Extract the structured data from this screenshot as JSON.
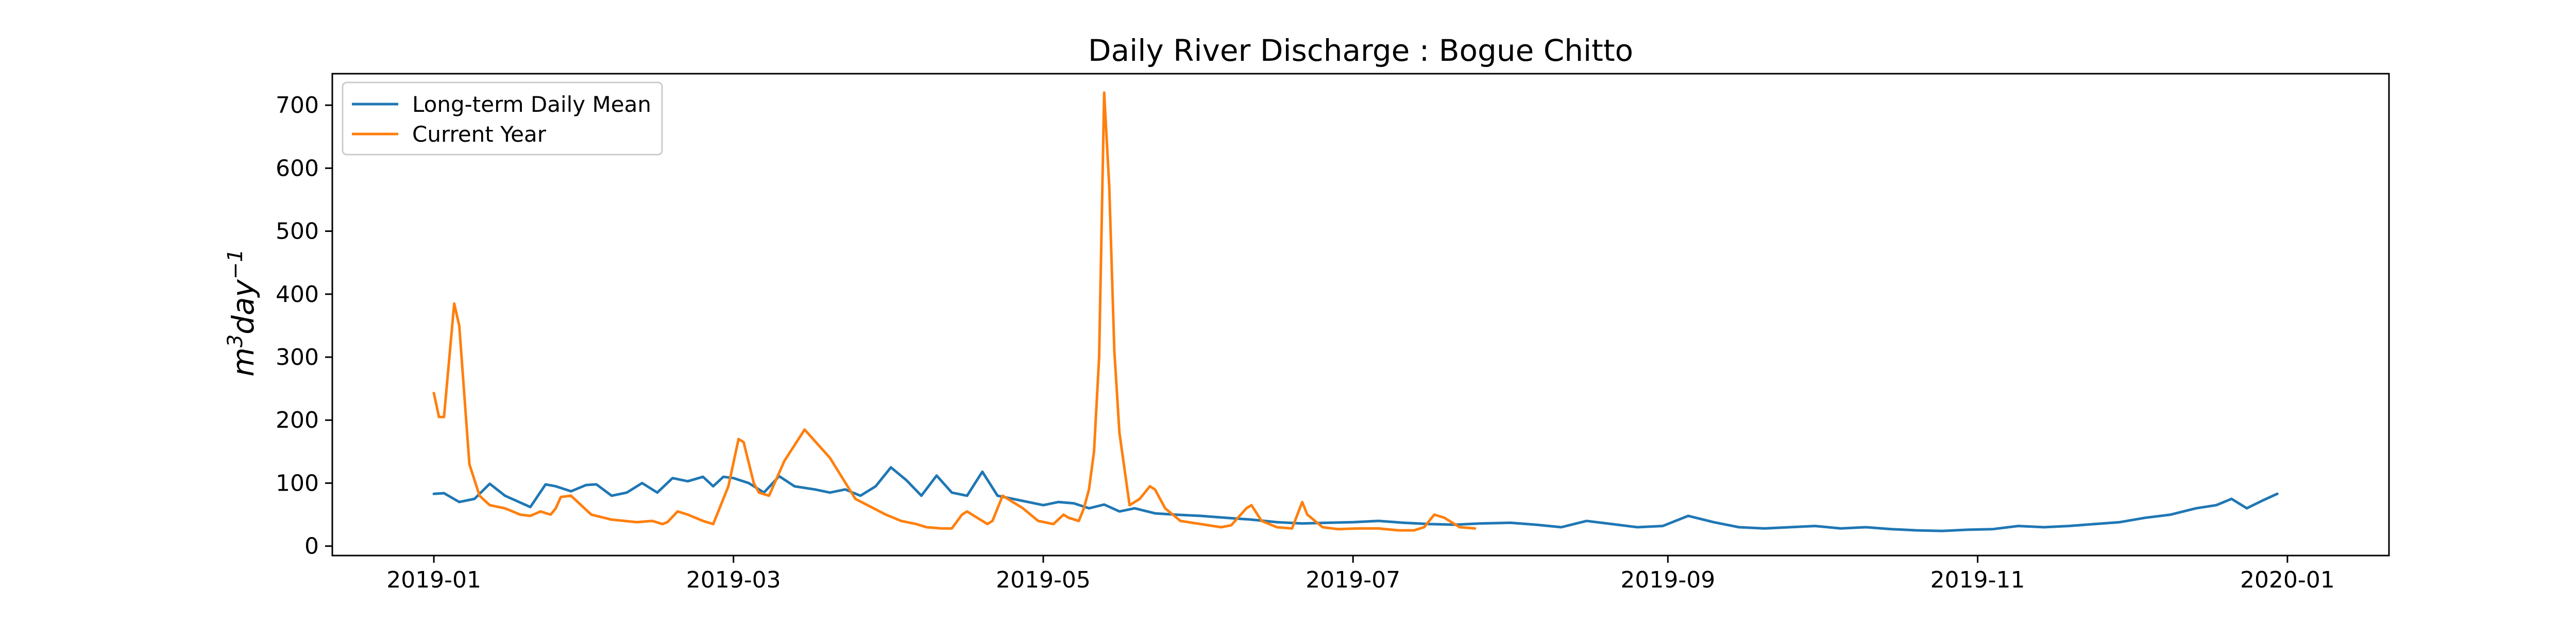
{
  "chart_data": {
    "type": "line",
    "title": "Daily River Discharge : Bogue Chitto",
    "ylabel": "m³day⁻¹",
    "ylabel_parts": {
      "base": "m",
      "sup1": "3",
      "mid": "day",
      "sup2": "−1"
    },
    "xlabel": "",
    "x_type": "date",
    "xlim": [
      "2018-12-12",
      "2020-01-21"
    ],
    "ylim": [
      -15,
      750
    ],
    "x_ticks": [
      "2019-01-01",
      "2019-03-01",
      "2019-05-01",
      "2019-07-01",
      "2019-09-01",
      "2019-11-01",
      "2020-01-01"
    ],
    "x_tick_labels": [
      "2019-01",
      "2019-03",
      "2019-05",
      "2019-07",
      "2019-09",
      "2019-11",
      "2020-01"
    ],
    "y_ticks": [
      0,
      100,
      200,
      300,
      400,
      500,
      600,
      700
    ],
    "y_tick_labels": [
      "0",
      "100",
      "200",
      "300",
      "400",
      "500",
      "600",
      "700"
    ],
    "grid": false,
    "legend_position": "top-left",
    "series": [
      {
        "name": "Long-term Daily Mean",
        "color": "#1f77b4",
        "x": [
          "2019-01-01",
          "2019-01-03",
          "2019-01-06",
          "2019-01-09",
          "2019-01-12",
          "2019-01-15",
          "2019-01-20",
          "2019-01-23",
          "2019-01-25",
          "2019-01-28",
          "2019-01-31",
          "2019-02-02",
          "2019-02-05",
          "2019-02-08",
          "2019-02-11",
          "2019-02-14",
          "2019-02-17",
          "2019-02-20",
          "2019-02-23",
          "2019-02-25",
          "2019-02-27",
          "2019-03-01",
          "2019-03-04",
          "2019-03-07",
          "2019-03-10",
          "2019-03-13",
          "2019-03-17",
          "2019-03-20",
          "2019-03-23",
          "2019-03-26",
          "2019-03-29",
          "2019-04-01",
          "2019-04-04",
          "2019-04-07",
          "2019-04-10",
          "2019-04-13",
          "2019-04-16",
          "2019-04-19",
          "2019-04-22",
          "2019-04-25",
          "2019-04-28",
          "2019-05-01",
          "2019-05-04",
          "2019-05-07",
          "2019-05-10",
          "2019-05-13",
          "2019-05-16",
          "2019-05-19",
          "2019-05-23",
          "2019-05-27",
          "2019-06-01",
          "2019-06-06",
          "2019-06-11",
          "2019-06-16",
          "2019-06-21",
          "2019-06-26",
          "2019-07-01",
          "2019-07-06",
          "2019-07-11",
          "2019-07-16",
          "2019-07-21",
          "2019-07-26",
          "2019-08-01",
          "2019-08-06",
          "2019-08-11",
          "2019-08-16",
          "2019-08-21",
          "2019-08-26",
          "2019-08-31",
          "2019-09-05",
          "2019-09-10",
          "2019-09-15",
          "2019-09-20",
          "2019-09-25",
          "2019-09-30",
          "2019-10-05",
          "2019-10-10",
          "2019-10-15",
          "2019-10-20",
          "2019-10-25",
          "2019-10-30",
          "2019-11-04",
          "2019-11-09",
          "2019-11-14",
          "2019-11-19",
          "2019-11-24",
          "2019-11-29",
          "2019-12-04",
          "2019-12-09",
          "2019-12-14",
          "2019-12-18",
          "2019-12-21",
          "2019-12-24",
          "2019-12-27",
          "2019-12-30"
        ],
        "y": [
          83,
          84,
          70,
          75,
          99,
          80,
          62,
          98,
          95,
          87,
          97,
          98,
          80,
          85,
          100,
          85,
          108,
          103,
          110,
          95,
          110,
          108,
          100,
          85,
          111,
          95,
          90,
          85,
          90,
          80,
          95,
          125,
          105,
          80,
          112,
          85,
          80,
          118,
          80,
          75,
          70,
          65,
          70,
          68,
          60,
          66,
          55,
          60,
          52,
          50,
          48,
          45,
          42,
          38,
          36,
          37,
          38,
          40,
          37,
          35,
          34,
          36,
          37,
          34,
          30,
          40,
          35,
          30,
          32,
          48,
          38,
          30,
          28,
          30,
          32,
          28,
          30,
          27,
          25,
          24,
          26,
          27,
          32,
          30,
          32,
          35,
          38,
          45,
          50,
          60,
          65,
          75,
          60,
          72,
          83
        ]
      },
      {
        "name": "Current Year",
        "color": "#ff7f0e",
        "x": [
          "2019-01-01",
          "2019-01-02",
          "2019-01-03",
          "2019-01-05",
          "2019-01-06",
          "2019-01-08",
          "2019-01-10",
          "2019-01-12",
          "2019-01-15",
          "2019-01-18",
          "2019-01-20",
          "2019-01-22",
          "2019-01-24",
          "2019-01-25",
          "2019-01-26",
          "2019-01-28",
          "2019-02-01",
          "2019-02-05",
          "2019-02-10",
          "2019-02-13",
          "2019-02-15",
          "2019-02-16",
          "2019-02-18",
          "2019-02-20",
          "2019-02-23",
          "2019-02-25",
          "2019-02-27",
          "2019-02-28",
          "2019-03-02",
          "2019-03-03",
          "2019-03-05",
          "2019-03-06",
          "2019-03-08",
          "2019-03-11",
          "2019-03-15",
          "2019-03-20",
          "2019-03-25",
          "2019-03-31",
          "2019-04-03",
          "2019-04-06",
          "2019-04-08",
          "2019-04-11",
          "2019-04-13",
          "2019-04-15",
          "2019-04-16",
          "2019-04-18",
          "2019-04-19",
          "2019-04-20",
          "2019-04-21",
          "2019-04-22",
          "2019-04-23",
          "2019-04-24",
          "2019-04-25",
          "2019-04-27",
          "2019-04-30",
          "2019-05-03",
          "2019-05-05",
          "2019-05-06",
          "2019-05-08",
          "2019-05-09",
          "2019-05-10",
          "2019-05-11",
          "2019-05-12",
          "2019-05-13",
          "2019-05-14",
          "2019-05-15",
          "2019-05-16",
          "2019-05-18",
          "2019-05-20",
          "2019-05-22",
          "2019-05-23",
          "2019-05-25",
          "2019-05-28",
          "2019-06-01",
          "2019-06-05",
          "2019-06-07",
          "2019-06-10",
          "2019-06-11",
          "2019-06-13",
          "2019-06-16",
          "2019-06-19",
          "2019-06-21",
          "2019-06-22",
          "2019-06-25",
          "2019-06-28",
          "2019-07-02",
          "2019-07-06",
          "2019-07-10",
          "2019-07-13",
          "2019-07-15",
          "2019-07-17",
          "2019-07-19",
          "2019-07-22",
          "2019-07-25"
        ],
        "y": [
          243,
          205,
          205,
          385,
          350,
          130,
          80,
          65,
          60,
          50,
          48,
          55,
          50,
          60,
          78,
          80,
          50,
          42,
          38,
          40,
          35,
          38,
          55,
          50,
          40,
          35,
          75,
          95,
          170,
          165,
          100,
          85,
          80,
          135,
          185,
          140,
          75,
          50,
          40,
          35,
          30,
          28,
          28,
          50,
          55,
          45,
          40,
          35,
          40,
          60,
          80,
          75,
          70,
          60,
          40,
          35,
          50,
          45,
          40,
          60,
          90,
          150,
          300,
          720,
          570,
          310,
          180,
          65,
          75,
          95,
          90,
          60,
          40,
          35,
          30,
          33,
          60,
          65,
          40,
          30,
          28,
          70,
          50,
          30,
          27,
          28,
          28,
          25,
          25,
          30,
          50,
          45,
          30,
          28
        ]
      }
    ]
  }
}
